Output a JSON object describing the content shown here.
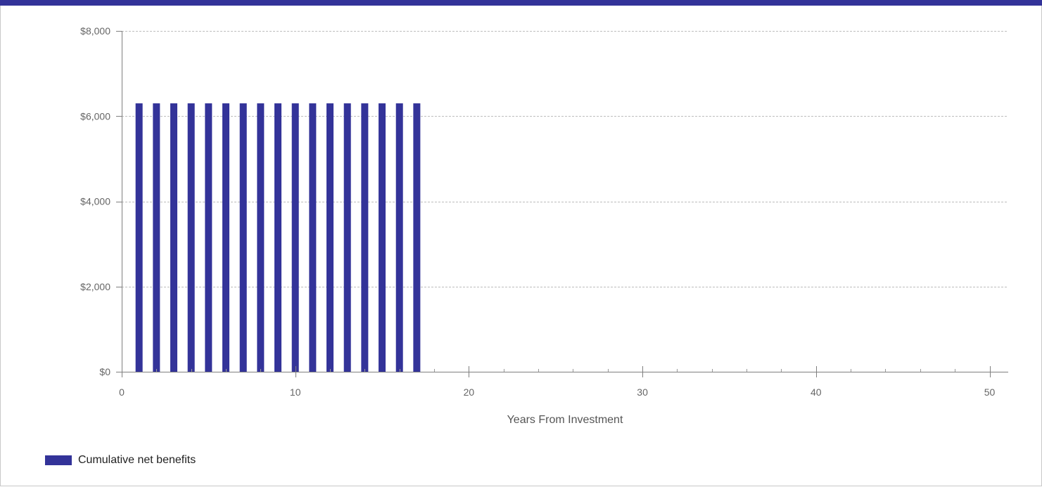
{
  "chart_data": {
    "type": "bar",
    "xlabel": "Years From Investment",
    "ylabel": "",
    "xlim": [
      0,
      51
    ],
    "ylim": [
      0,
      8000
    ],
    "x_ticks": [
      0,
      10,
      20,
      30,
      40,
      50
    ],
    "y_ticks": [
      0,
      2000,
      4000,
      6000,
      8000
    ],
    "y_tick_labels": [
      "$0",
      "$2,000",
      "$4,000",
      "$6,000",
      "$8,000"
    ],
    "grid": "horizontal-dashed",
    "legend_position": "bottom-left",
    "series": [
      {
        "name": "Cumulative net benefits",
        "color": "#333399",
        "x": [
          1,
          2,
          3,
          4,
          5,
          6,
          7,
          8,
          9,
          10,
          11,
          12,
          13,
          14,
          15,
          16,
          17
        ],
        "values": [
          6300,
          6300,
          6300,
          6300,
          6300,
          6300,
          6300,
          6300,
          6300,
          6300,
          6300,
          6300,
          6300,
          6300,
          6300,
          6300,
          6300
        ]
      }
    ]
  },
  "legend": {
    "label": "Cumulative net benefits",
    "color": "#333399"
  }
}
